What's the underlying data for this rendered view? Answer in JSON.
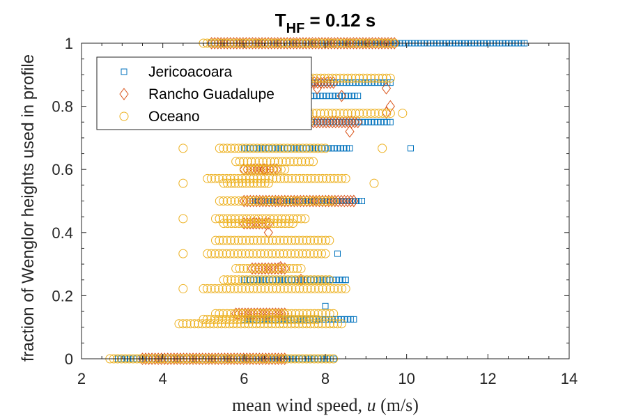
{
  "chart_data": {
    "type": "scatter",
    "title": {
      "main": "T",
      "subscript": "HF",
      "rest": " = 0.12 s"
    },
    "xlabel": {
      "prefix": "mean wind speed, ",
      "var": "u",
      "suffix": " (m/s)"
    },
    "ylabel": "fraction of Wenglor heights used in profile",
    "xlim": [
      2,
      14
    ],
    "ylim": [
      0,
      1
    ],
    "xticks": [
      "2",
      "4",
      "6",
      "8",
      "10",
      "12",
      "14"
    ],
    "yticks": [
      "0",
      "0.2",
      "0.4",
      "0.6",
      "0.8",
      "1"
    ],
    "grid": false,
    "legend_position": "top-left",
    "series": [
      {
        "name": "Jericoacoara",
        "marker": "square",
        "color": "#0072BD",
        "segments": [
          {
            "y": 1.0,
            "x0": 5.2,
            "x1": 12.9
          },
          {
            "y": 0.875,
            "x0": 6.2,
            "x1": 9.6
          },
          {
            "y": 0.833,
            "x0": 6.0,
            "x1": 8.8
          },
          {
            "y": 0.75,
            "x0": 6.4,
            "x1": 9.6
          },
          {
            "y": 0.667,
            "x0": 6.0,
            "x1": 8.6
          },
          {
            "y": 0.5,
            "x0": 6.2,
            "x1": 8.9
          },
          {
            "y": 0.25,
            "x0": 6.0,
            "x1": 8.5
          },
          {
            "y": 0.125,
            "x0": 6.0,
            "x1": 8.7
          },
          {
            "y": 0.0,
            "x0": 2.9,
            "x1": 8.2
          }
        ],
        "points": [
          {
            "x": 10.1,
            "y": 0.667
          },
          {
            "x": 8.3,
            "y": 0.333
          },
          {
            "x": 8.5,
            "y": 0.25
          },
          {
            "x": 8.0,
            "y": 0.167
          }
        ]
      },
      {
        "name": "Rancho Guadalupe",
        "marker": "diamond",
        "color": "#D95319",
        "segments": [
          {
            "y": 1.0,
            "x0": 5.2,
            "x1": 9.7
          },
          {
            "y": 0.875,
            "x0": 6.8,
            "x1": 8.2
          },
          {
            "y": 0.75,
            "x0": 6.3,
            "x1": 8.8
          },
          {
            "y": 0.6,
            "x0": 6.0,
            "x1": 6.8
          },
          {
            "y": 0.5,
            "x0": 6.0,
            "x1": 8.7
          },
          {
            "y": 0.429,
            "x0": 6.0,
            "x1": 6.6
          },
          {
            "y": 0.286,
            "x0": 6.2,
            "x1": 7.0
          },
          {
            "y": 0.143,
            "x0": 5.8,
            "x1": 7.0
          },
          {
            "y": 0.0,
            "x0": 3.5,
            "x1": 7.0
          }
        ],
        "points": [
          {
            "x": 9.5,
            "y": 0.857
          },
          {
            "x": 9.6,
            "y": 0.8
          },
          {
            "x": 9.5,
            "y": 0.78
          },
          {
            "x": 8.6,
            "y": 0.72
          },
          {
            "x": 8.4,
            "y": 0.833
          },
          {
            "x": 7.8,
            "y": 0.857
          },
          {
            "x": 8.7,
            "y": 0.5
          },
          {
            "x": 6.6,
            "y": 0.4
          },
          {
            "x": 7.4,
            "y": 0.25
          },
          {
            "x": 6.9,
            "y": 0.29
          },
          {
            "x": 6.5,
            "y": 0.6
          }
        ]
      },
      {
        "name": "Oceano",
        "marker": "circle",
        "color": "#EDB120",
        "segments": [
          {
            "y": 1.0,
            "x0": 5.0,
            "x1": 9.7
          },
          {
            "y": 0.889,
            "x0": 5.6,
            "x1": 9.6
          },
          {
            "y": 0.857,
            "x0": 5.5,
            "x1": 7.5
          },
          {
            "y": 0.778,
            "x0": 5.5,
            "x1": 9.6
          },
          {
            "y": 0.75,
            "x0": 5.5,
            "x1": 7.6
          },
          {
            "y": 0.667,
            "x0": 5.4,
            "x1": 8.0
          },
          {
            "y": 0.625,
            "x0": 5.8,
            "x1": 7.7
          },
          {
            "y": 0.6,
            "x0": 6.0,
            "x1": 7.0
          },
          {
            "y": 0.571,
            "x0": 5.1,
            "x1": 8.5
          },
          {
            "y": 0.556,
            "x0": 5.5,
            "x1": 6.6
          },
          {
            "y": 0.5,
            "x0": 5.4,
            "x1": 8.2
          },
          {
            "y": 0.444,
            "x0": 5.3,
            "x1": 7.5
          },
          {
            "y": 0.429,
            "x0": 5.5,
            "x1": 7.2
          },
          {
            "y": 0.375,
            "x0": 5.3,
            "x1": 8.1
          },
          {
            "y": 0.333,
            "x0": 5.1,
            "x1": 8.0
          },
          {
            "y": 0.286,
            "x0": 5.8,
            "x1": 7.4
          },
          {
            "y": 0.25,
            "x0": 5.5,
            "x1": 8.1
          },
          {
            "y": 0.222,
            "x0": 5.0,
            "x1": 8.5
          },
          {
            "y": 0.143,
            "x0": 5.3,
            "x1": 8.2
          },
          {
            "y": 0.125,
            "x0": 5.0,
            "x1": 7.8
          },
          {
            "y": 0.111,
            "x0": 4.4,
            "x1": 8.3
          },
          {
            "y": 0.0,
            "x0": 2.7,
            "x1": 8.2
          }
        ],
        "points": [
          {
            "x": 4.5,
            "y": 0.667
          },
          {
            "x": 4.5,
            "y": 0.556
          },
          {
            "x": 4.5,
            "y": 0.444
          },
          {
            "x": 4.5,
            "y": 0.333
          },
          {
            "x": 4.5,
            "y": 0.222
          },
          {
            "x": 9.9,
            "y": 0.778
          },
          {
            "x": 9.4,
            "y": 0.667
          },
          {
            "x": 9.2,
            "y": 0.556
          },
          {
            "x": 8.4,
            "y": 0.111
          }
        ]
      }
    ]
  }
}
